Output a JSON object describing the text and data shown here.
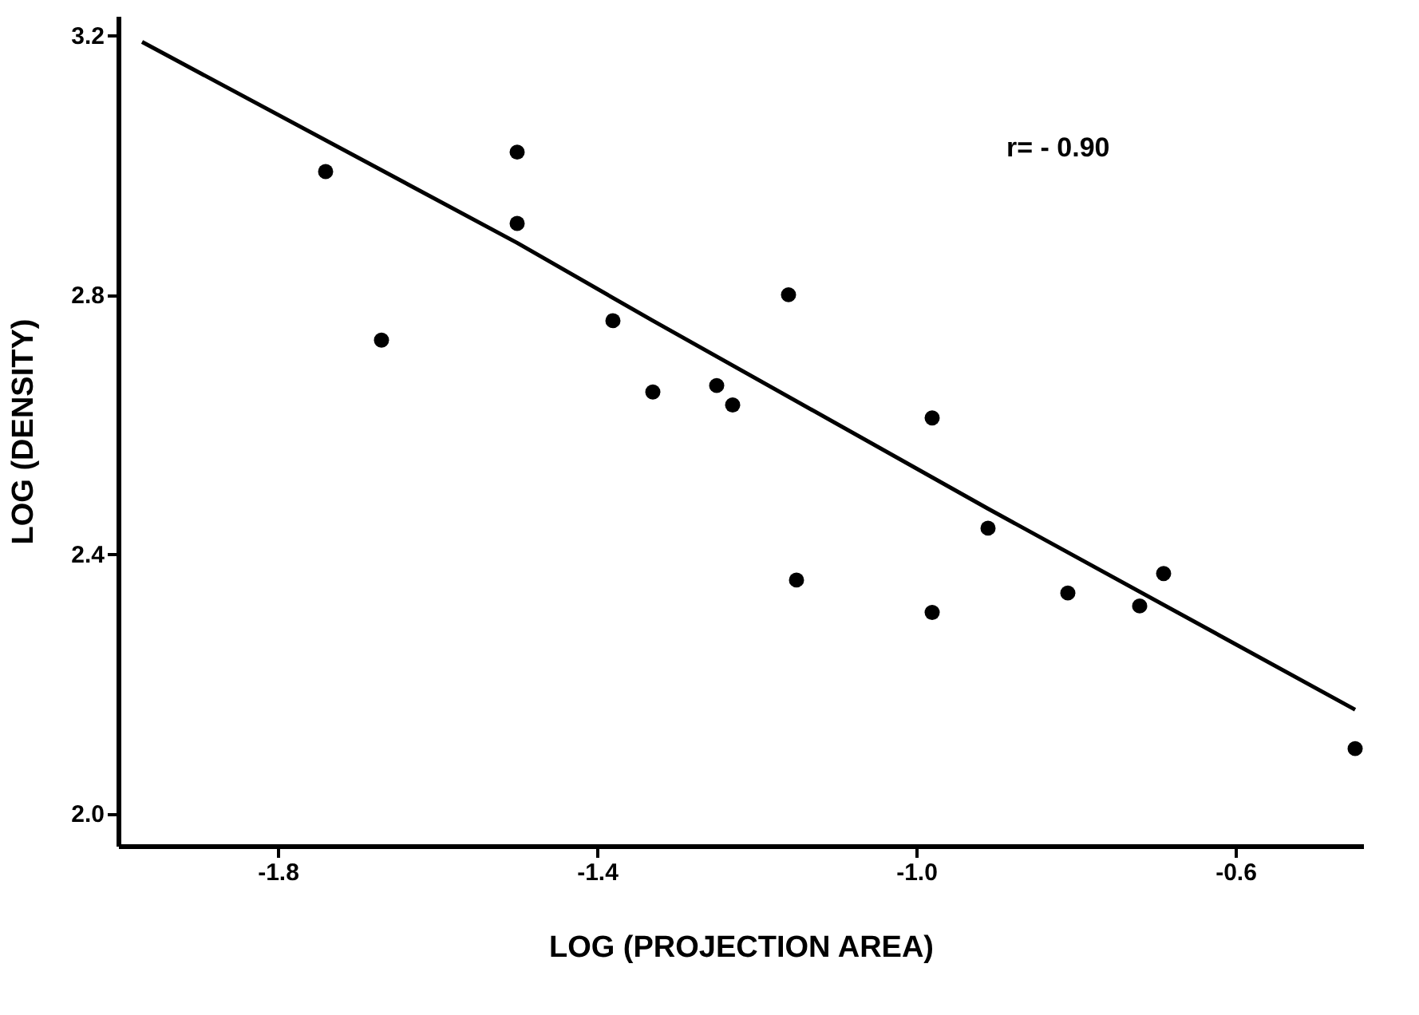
{
  "chart_data": {
    "type": "scatter",
    "xlabel": "LOG (PROJECTION AREA)",
    "ylabel": "LOG (DENSITY)",
    "annotations": [
      "r= - 0.90"
    ],
    "xlim": [
      -2.0,
      -0.44
    ],
    "ylim": [
      1.95,
      3.23
    ],
    "xticks": [
      {
        "value": -1.8,
        "label": "-1.8"
      },
      {
        "value": -1.4,
        "label": "-1.4"
      },
      {
        "value": -1.0,
        "label": "-1.0"
      },
      {
        "value": -0.6,
        "label": "-0.6"
      }
    ],
    "yticks": [
      {
        "value": 2.0,
        "label": "2.0"
      },
      {
        "value": 2.4,
        "label": "2.4"
      },
      {
        "value": 2.8,
        "label": "2.8"
      },
      {
        "value": 3.2,
        "label": "3.2"
      }
    ],
    "grid": false,
    "marker": "circle",
    "series": [
      {
        "color": "#000000",
        "x": [
          -1.74,
          -1.67,
          -1.5,
          -1.5,
          -1.38,
          -1.33,
          -1.25,
          -1.23,
          -1.16,
          -1.15,
          -0.98,
          -0.98,
          -0.91,
          -0.81,
          -0.72,
          -0.69,
          -0.45
        ],
        "values": [
          2.99,
          2.73,
          3.02,
          2.91,
          2.76,
          2.65,
          2.66,
          2.63,
          2.8,
          2.36,
          2.61,
          2.31,
          2.44,
          2.34,
          2.32,
          2.37,
          2.1
        ]
      },
      {
        "type": "line",
        "color": "#000000",
        "line_style": "solid",
        "marker": "none",
        "x": [
          -1.97,
          -1.5,
          -1.33,
          -0.91,
          -0.45
        ],
        "values": [
          3.19,
          2.88,
          2.76,
          2.47,
          2.16
        ]
      }
    ]
  }
}
